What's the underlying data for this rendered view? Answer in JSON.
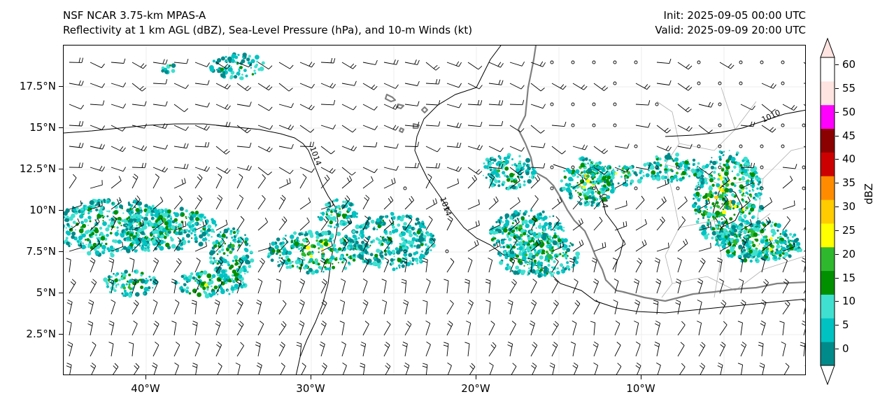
{
  "title": {
    "line1": "NSF NCAR 3.75-km MPAS-A",
    "line2": "Reflectivity at 1 km AGL (dBZ), Sea-Level Pressure (hPa), and 10-m Winds (kt)",
    "init": "Init: 2025-09-05 00:00 UTC",
    "valid": "Valid: 2025-09-09 20:00 UTC"
  },
  "map": {
    "lon_range": [
      -45,
      0
    ],
    "lat_range": [
      0,
      20
    ],
    "lon_ticks": [
      {
        "value": -40,
        "label": "40°W"
      },
      {
        "value": -30,
        "label": "30°W"
      },
      {
        "value": -20,
        "label": "20°W"
      },
      {
        "value": -10,
        "label": "10°W"
      }
    ],
    "lat_ticks": [
      {
        "value": 17.5,
        "label": "17.5°N"
      },
      {
        "value": 15,
        "label": "15°N"
      },
      {
        "value": 12.5,
        "label": "12.5°N"
      },
      {
        "value": 10,
        "label": "10°N"
      },
      {
        "value": 7.5,
        "label": "7.5°N"
      },
      {
        "value": 5,
        "label": "5°N"
      },
      {
        "value": 2.5,
        "label": "2.5°N"
      }
    ],
    "isobar_labels": [
      "1014",
      "1014",
      "1014",
      "1010"
    ],
    "coastline_color": "#808080",
    "isobar_color": "#000000"
  },
  "colorbar": {
    "unit": "dBZ",
    "levels": [
      "0",
      "5",
      "10",
      "15",
      "20",
      "25",
      "30",
      "35",
      "40",
      "45",
      "50",
      "55",
      "60"
    ],
    "colors": [
      "#ffffff",
      "#008a8a",
      "#00c2c2",
      "#40e0d0",
      "#009000",
      "#2eb82e",
      "#ffff00",
      "#ffcc00",
      "#ff8c00",
      "#cc0000",
      "#8b0000",
      "#ff00ff",
      "#ffe4e1",
      "#ffffff"
    ]
  },
  "chart_data": {
    "type": "map",
    "variables": [
      "Reflectivity at 1 km AGL (dBZ)",
      "Sea-Level Pressure (hPa)",
      "10-m Winds (kt)"
    ],
    "isobars_hPa": [
      1014,
      1010
    ],
    "reflectivity_range_dBZ": [
      0,
      60
    ]
  }
}
